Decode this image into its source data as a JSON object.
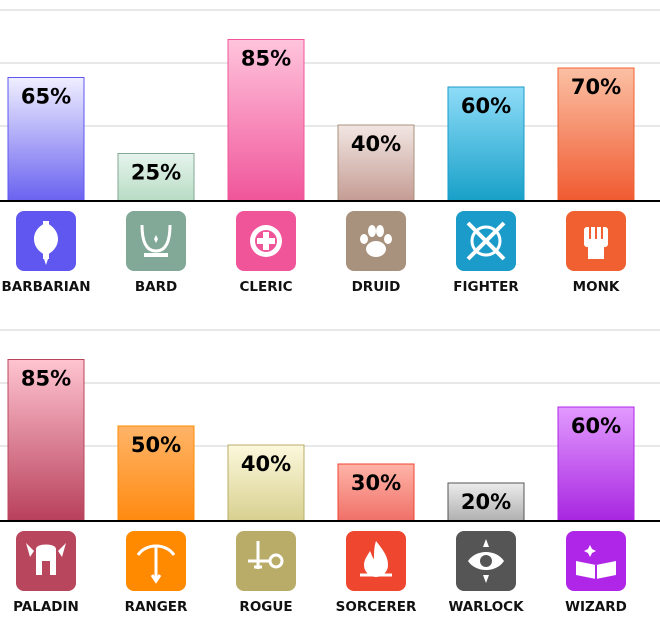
{
  "chart_data": [
    {
      "type": "bar",
      "categories": [
        "BARBARIAN",
        "BARD",
        "CLERIC",
        "DRUID",
        "FIGHTER",
        "MONK"
      ],
      "values": [
        65,
        25,
        85,
        40,
        60,
        70
      ],
      "value_format": "percent",
      "ylim": [
        0,
        100
      ],
      "grid": true,
      "colors": [
        "#6057f0",
        "#82a898",
        "#f0559a",
        "#a8927e",
        "#1a9bc9",
        "#f06030"
      ],
      "icons": [
        "double-axe-icon",
        "lyre-icon",
        "holy-cross-icon",
        "paw-icon",
        "crossed-swords-shield-icon",
        "fist-icon"
      ]
    },
    {
      "type": "bar",
      "categories": [
        "PALADIN",
        "RANGER",
        "ROGUE",
        "SORCERER",
        "WARLOCK",
        "WIZARD"
      ],
      "values": [
        85,
        50,
        40,
        30,
        20,
        60
      ],
      "value_format": "percent",
      "ylim": [
        0,
        100
      ],
      "grid": true,
      "colors": [
        "#b8465c",
        "#ff8a00",
        "#b8ac68",
        "#ef4630",
        "#555555",
        "#b026e8"
      ],
      "icons": [
        "winged-helmet-icon",
        "bow-arrow-icon",
        "dagger-key-icon",
        "fire-icon",
        "eye-icon",
        "spellbook-icon"
      ]
    }
  ]
}
